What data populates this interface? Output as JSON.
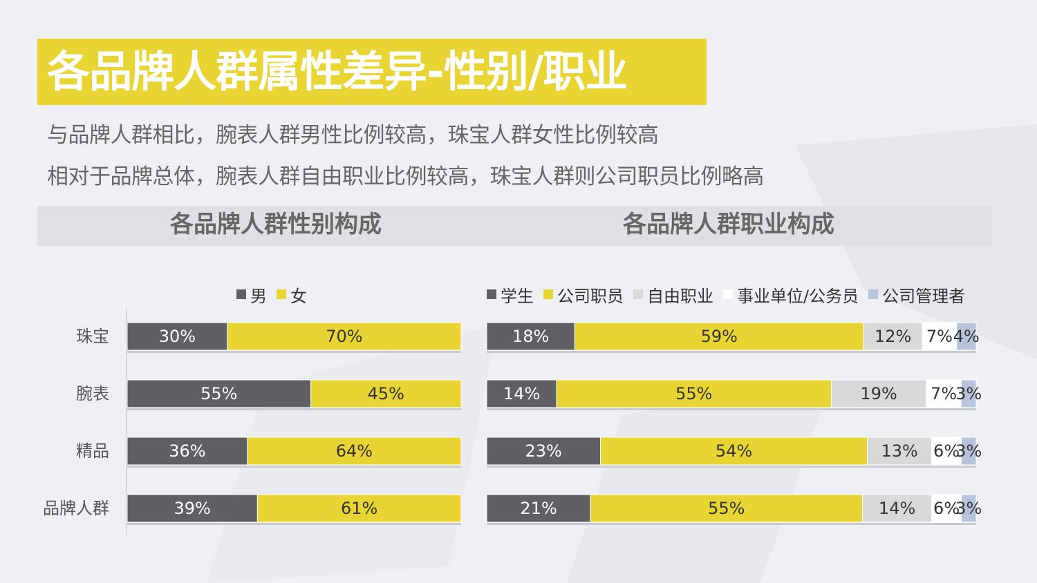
{
  "header": {
    "title": "各品牌人群属性差异-性别/职业",
    "subtitle_1": "与品牌人群相比，腕表人群男性比例较高，珠宝人群女性比例较高",
    "subtitle_2": "相对于品牌总体，腕表人群自由职业比例较高，珠宝人群则公司职员比例略高"
  },
  "colors": {
    "accent_yellow": "#e8d533",
    "dark_gray": "#5f6064",
    "light_gray": "#d9d9d9",
    "white": "#ffffff",
    "light_blue": "#b8c4dc"
  },
  "chart_data": [
    {
      "type": "bar",
      "orientation": "horizontal-stacked-100",
      "title": "各品牌人群性别构成",
      "categories": [
        "珠宝",
        "腕表",
        "精品",
        "品牌人群"
      ],
      "series": [
        {
          "name": "男",
          "color": "#5f6064",
          "values": [
            30,
            55,
            36,
            39
          ],
          "labels": [
            "30%",
            "55%",
            "36%",
            "39%"
          ]
        },
        {
          "name": "女",
          "color": "#e8d533",
          "values": [
            70,
            45,
            64,
            61
          ],
          "labels": [
            "70%",
            "45%",
            "64%",
            "61%"
          ]
        }
      ],
      "xlim": [
        0,
        100
      ],
      "legend": "top",
      "grid": false
    },
    {
      "type": "bar",
      "orientation": "horizontal-stacked-100",
      "title": "各品牌人群职业构成",
      "categories": [
        "珠宝",
        "腕表",
        "精品",
        "品牌人群"
      ],
      "series": [
        {
          "name": "学生",
          "color": "#5f6064",
          "values": [
            18,
            14,
            23,
            21
          ],
          "labels": [
            "18%",
            "14%",
            "23%",
            "21%"
          ]
        },
        {
          "name": "公司职员",
          "color": "#e8d533",
          "values": [
            59,
            55,
            54,
            55
          ],
          "labels": [
            "59%",
            "55%",
            "54%",
            "55%"
          ]
        },
        {
          "name": "自由职业",
          "color": "#d9d9d9",
          "values": [
            12,
            19,
            13,
            14
          ],
          "labels": [
            "12%",
            "19%",
            "13%",
            "14%"
          ]
        },
        {
          "name": "事业单位/公务员",
          "color": "#ffffff",
          "values": [
            7,
            7,
            6,
            6
          ],
          "labels": [
            "7%",
            "7%",
            "6%",
            "6%"
          ]
        },
        {
          "name": "公司管理者",
          "color": "#b8c4dc",
          "values": [
            4,
            3,
            3,
            3
          ],
          "labels": [
            "4%",
            "3%",
            "3%",
            "3%"
          ]
        }
      ],
      "xlim": [
        0,
        100
      ],
      "legend": "top",
      "grid": false
    }
  ]
}
